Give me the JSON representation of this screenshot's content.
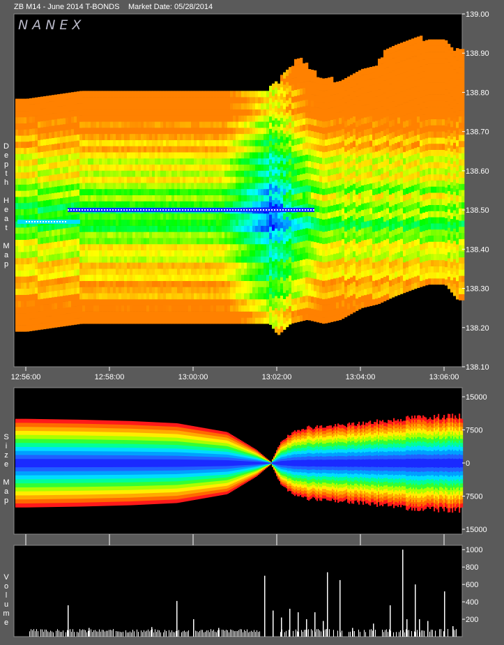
{
  "header": {
    "title": "ZB M14 - June 2014 T-BONDS",
    "market_date": "Market Date: 05/28/2014",
    "brand": "NANEX"
  },
  "colors": {
    "background": "#5a5a5a",
    "panel": "#000000",
    "axis": "#ffffff",
    "volume_bar": "#ffffff"
  },
  "chart_data": [
    {
      "type": "heatmap",
      "name": "depth-heat-map",
      "side_label": "Depth Heat Map",
      "x_ticks": [
        "12:56:00",
        "12:58:00",
        "13:00:00",
        "13:02:00",
        "13:04:00",
        "13:06:00"
      ],
      "y_ticks": [
        "139.00",
        "138.90",
        "138.80",
        "138.70",
        "138.60",
        "138.50",
        "138.40",
        "138.30",
        "138.20",
        "138.10"
      ],
      "ylim": [
        138.1,
        139.0
      ],
      "xlim_minutes": [
        0,
        10.4
      ],
      "price_step": 0.015625,
      "color_scale": [
        "#0000ff",
        "#00ffff",
        "#00ff00",
        "#ffff00",
        "#ff8000"
      ],
      "top_edge": [
        [
          0,
          138.78
        ],
        [
          1.3,
          138.8
        ],
        [
          3.6,
          138.8
        ],
        [
          5.8,
          138.8
        ],
        [
          6.0,
          138.82
        ],
        [
          6.3,
          138.86
        ],
        [
          6.5,
          138.88
        ],
        [
          6.9,
          138.84
        ],
        [
          7.5,
          138.82
        ],
        [
          7.9,
          138.84
        ],
        [
          8.3,
          138.86
        ],
        [
          8.6,
          138.9
        ],
        [
          8.9,
          138.92
        ],
        [
          9.3,
          138.94
        ],
        [
          9.6,
          138.92
        ],
        [
          10.0,
          138.92
        ],
        [
          10.3,
          138.9
        ]
      ],
      "bottom_edge": [
        [
          0,
          138.19
        ],
        [
          1.3,
          138.21
        ],
        [
          3.6,
          138.21
        ],
        [
          5.8,
          138.21
        ],
        [
          6.0,
          138.18
        ],
        [
          6.3,
          138.21
        ],
        [
          6.7,
          138.22
        ],
        [
          7.1,
          138.21
        ],
        [
          7.5,
          138.22
        ],
        [
          8.0,
          138.25
        ],
        [
          8.4,
          138.26
        ],
        [
          8.8,
          138.28
        ],
        [
          9.3,
          138.3
        ],
        [
          9.6,
          138.31
        ],
        [
          10.0,
          138.31
        ],
        [
          10.3,
          138.27
        ]
      ],
      "crossover_minute": 5.85,
      "bid_wall_price": 138.5,
      "ask_wall_price": 138.47
    },
    {
      "type": "area",
      "name": "size-map",
      "side_label": "Size Map",
      "y_ticks": [
        "15000",
        "7500",
        "0",
        "7500",
        "15000"
      ],
      "ylim": [
        -15000,
        15000
      ],
      "x_ticks": [
        "12:56:00",
        "12:58:00",
        "13:00:00",
        "13:02:00",
        "13:04:00",
        "13:06:00"
      ],
      "envelope": [
        [
          0,
          10000
        ],
        [
          1.3,
          9800
        ],
        [
          2.5,
          9500
        ],
        [
          3.6,
          9000
        ],
        [
          4.8,
          7000
        ],
        [
          5.5,
          3000
        ],
        [
          5.85,
          200
        ],
        [
          6.1,
          5500
        ],
        [
          6.6,
          8500
        ],
        [
          7.5,
          9000
        ],
        [
          8.5,
          10000
        ],
        [
          9.3,
          11000
        ],
        [
          10.3,
          11200
        ]
      ],
      "color_bands": [
        "#ff1a1a",
        "#ff6a00",
        "#ffaa00",
        "#ffee00",
        "#aaff00",
        "#33ff33",
        "#00ff99",
        "#00ddff",
        "#00a0ff",
        "#2060ff",
        "#1a2aff"
      ]
    },
    {
      "type": "bar",
      "name": "volume",
      "side_label": "Volume",
      "y_ticks": [
        "1000",
        "800",
        "600",
        "400",
        "200"
      ],
      "ylim": [
        0,
        1050
      ],
      "x_ticks": [
        "12:56:00",
        "12:58:00",
        "13:00:00",
        "13:02:00",
        "13:04:00",
        "13:06:00"
      ],
      "spikes": [
        [
          1.0,
          360
        ],
        [
          1.5,
          100
        ],
        [
          3.0,
          110
        ],
        [
          3.6,
          410
        ],
        [
          4.0,
          200
        ],
        [
          4.6,
          100
        ],
        [
          5.7,
          700
        ],
        [
          5.9,
          300
        ],
        [
          6.1,
          220
        ],
        [
          6.3,
          320
        ],
        [
          6.5,
          280
        ],
        [
          6.7,
          200
        ],
        [
          6.9,
          280
        ],
        [
          7.1,
          180
        ],
        [
          7.2,
          740
        ],
        [
          7.5,
          650
        ],
        [
          7.8,
          100
        ],
        [
          8.3,
          150
        ],
        [
          8.7,
          360
        ],
        [
          9.0,
          1000
        ],
        [
          9.1,
          200
        ],
        [
          9.3,
          600
        ],
        [
          9.4,
          200
        ],
        [
          9.6,
          180
        ],
        [
          10.0,
          520
        ],
        [
          10.2,
          120
        ]
      ],
      "base_level": 80
    }
  ]
}
